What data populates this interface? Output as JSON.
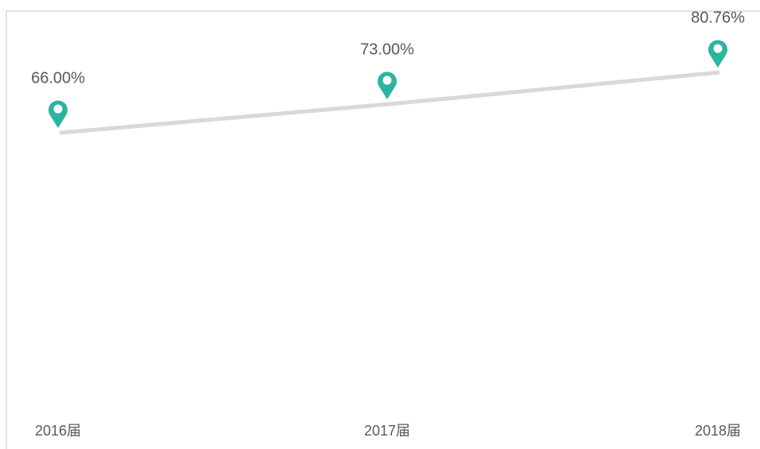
{
  "chart_data": {
    "type": "line",
    "categories": [
      "2016届",
      "2017届",
      "2018届"
    ],
    "series": [
      {
        "color": "#d9d9d9",
        "marker_color": "#2bb5a0",
        "values": [
          66,
          73,
          80.76
        ],
        "value_labels": [
          "66.00%",
          "73.00%",
          "80.76%"
        ]
      }
    ],
    "ylim": [
      0,
      90
    ]
  }
}
